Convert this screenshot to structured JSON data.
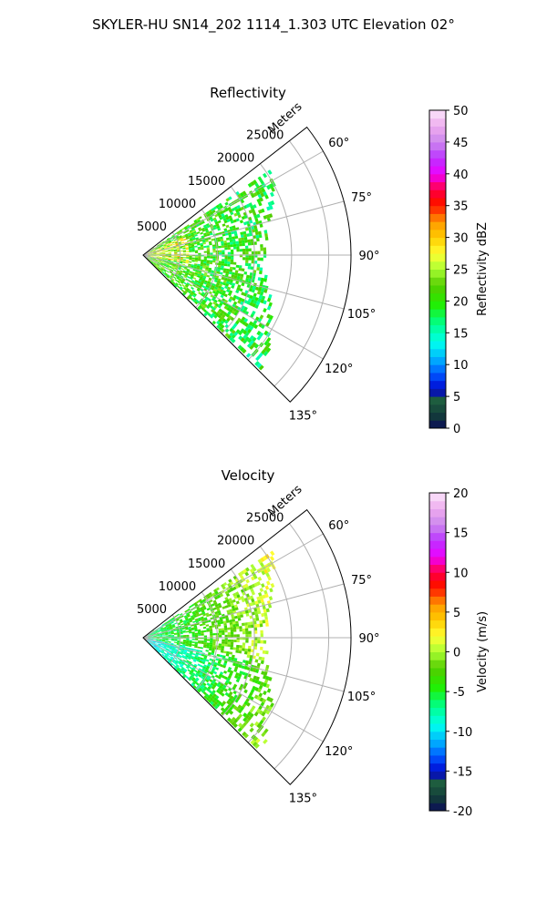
{
  "suptitle": "SKYLER-HU  SN14_202  1114_1.303 UTC Elevation 02°",
  "chart_data": [
    {
      "type": "heatmap",
      "title": "Reflectivity",
      "range_label": "Meters",
      "range_ticks": [
        "5000",
        "10000",
        "15000",
        "20000",
        "25000"
      ],
      "azimuth_ticks": [
        "60°",
        "75°",
        "90°",
        "105°",
        "120°",
        "135°"
      ],
      "colorbar": {
        "label": "Reflectivity dBZ",
        "ticks": [
          "0",
          "5",
          "10",
          "15",
          "20",
          "25",
          "30",
          "35",
          "40",
          "45",
          "50"
        ],
        "vmin": 0,
        "vmax": 50
      },
      "range_max_m": 28000,
      "azimuth_range_deg": [
        52,
        135
      ]
    },
    {
      "type": "heatmap",
      "title": "Velocity",
      "range_label": "Meters",
      "range_ticks": [
        "5000",
        "10000",
        "15000",
        "20000",
        "25000"
      ],
      "azimuth_ticks": [
        "60°",
        "75°",
        "90°",
        "105°",
        "120°",
        "135°"
      ],
      "colorbar": {
        "label": "Velocity (m/s)",
        "ticks": [
          "-20",
          "-15",
          "-10",
          "-5",
          "0",
          "5",
          "10",
          "15",
          "20"
        ],
        "vmin": -20,
        "vmax": 20
      },
      "range_max_m": 28000,
      "azimuth_range_deg": [
        52,
        135
      ]
    }
  ]
}
